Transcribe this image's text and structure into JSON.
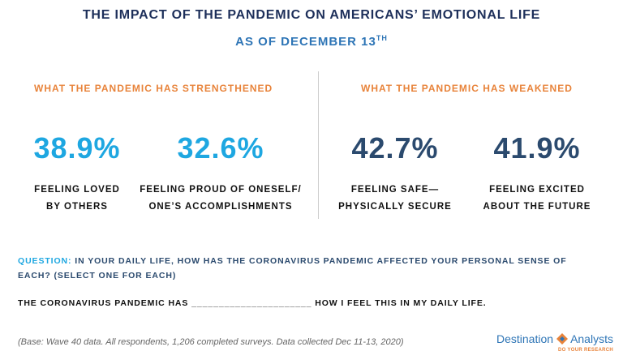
{
  "header": {
    "title": "THE IMPACT OF THE PANDEMIC ON AMERICANS’ EMOTIONAL LIFE",
    "subtitle": "AS OF DECEMBER 13",
    "subtitle_superscript": "TH"
  },
  "sections": [
    {
      "heading": "WHAT THE PANDEMIC HAS STRENGTHENED",
      "stats": [
        {
          "value": "38.9%",
          "label_lines": [
            "FEELING LOVED",
            "BY OTHERS"
          ]
        },
        {
          "value": "32.6%",
          "label_lines": [
            "FEELING PROUD OF ONESELF/",
            "ONE’S ACCOMPLISHMENTS"
          ]
        }
      ]
    },
    {
      "heading": "WHAT THE PANDEMIC HAS WEAKENED",
      "stats": [
        {
          "value": "42.7%",
          "label_lines": [
            "FEELING SAFE—",
            "PHYSICALLY SECURE"
          ]
        },
        {
          "value": "41.9%",
          "label_lines": [
            "FEELING EXCITED",
            "ABOUT THE FUTURE"
          ]
        }
      ]
    }
  ],
  "question": {
    "label": "QUESTION:",
    "text_lines": [
      "IN YOUR DAILY LIFE, HOW HAS THE CORONAVIRUS PANDEMIC AFFECTED YOUR PERSONAL SENSE OF",
      "EACH?  (SELECT ONE FOR EACH)"
    ],
    "prompt": "THE CORONAVIRUS PANDEMIC HAS ______________________ HOW I FEEL THIS IN MY DAILY LIFE."
  },
  "footer": {
    "note": "(Base: Wave 40 data. All respondents, 1,206 completed surveys. Data collected Dec 11-13, 2020)",
    "logo_left": "Destination",
    "logo_right": "Analysts",
    "logo_tagline": "DO YOUR RESEARCH"
  }
}
